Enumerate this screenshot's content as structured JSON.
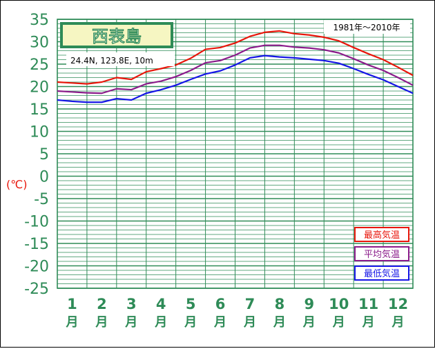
{
  "chart_data": {
    "type": "line",
    "title": "西表島",
    "subtitle": "24.4N, 123.8E, 10m",
    "period": "1981年〜2010年",
    "ylabel": "(℃)",
    "ylim": [
      -25,
      35
    ],
    "y_ticks": [
      35,
      30,
      25,
      20,
      15,
      10,
      5,
      0,
      -5,
      -10,
      -15,
      -20,
      -25
    ],
    "x_ticks": [
      "1",
      "2",
      "3",
      "4",
      "5",
      "6",
      "7",
      "8",
      "9",
      "10",
      "11",
      "12"
    ],
    "x_unit": "月",
    "grid": true,
    "legend_position": "bottom-right",
    "x": [
      0,
      0.5,
      1,
      1.5,
      2,
      2.5,
      3,
      3.5,
      4,
      4.5,
      5,
      5.5,
      6,
      6.5,
      7,
      7.5,
      8,
      8.5,
      9,
      9.5,
      10,
      10.5,
      11,
      11.5,
      12
    ],
    "series": [
      {
        "name": "最高気温",
        "color": "#e8150a",
        "values": [
          21.0,
          20.8,
          20.6,
          21.0,
          22.0,
          21.6,
          23.3,
          24.0,
          24.8,
          26.3,
          28.3,
          28.7,
          29.7,
          31.2,
          32.1,
          32.4,
          31.8,
          31.5,
          31.0,
          30.2,
          28.7,
          27.3,
          26.0,
          24.3,
          22.5
        ]
      },
      {
        "name": "平均気温",
        "color": "#8a1a8a",
        "values": [
          19.0,
          18.8,
          18.6,
          18.5,
          19.5,
          19.3,
          20.6,
          21.2,
          22.2,
          23.6,
          25.3,
          25.8,
          27.0,
          28.6,
          29.2,
          29.2,
          28.8,
          28.6,
          28.2,
          27.5,
          26.2,
          24.8,
          23.6,
          22.0,
          20.3
        ]
      },
      {
        "name": "最低気温",
        "color": "#1414e6",
        "values": [
          17.0,
          16.7,
          16.5,
          16.5,
          17.3,
          17.0,
          18.5,
          19.3,
          20.3,
          21.6,
          22.8,
          23.5,
          24.8,
          26.4,
          26.9,
          26.6,
          26.4,
          26.1,
          25.8,
          25.2,
          24.0,
          22.7,
          21.5,
          20.0,
          18.5
        ]
      }
    ]
  },
  "colors": {
    "axis_label": "#2e8b57",
    "grid": "#2e8b57",
    "ylabel": "#e8150a",
    "title_border": "#2e8b57",
    "title_bg": "#f6f6c2"
  }
}
